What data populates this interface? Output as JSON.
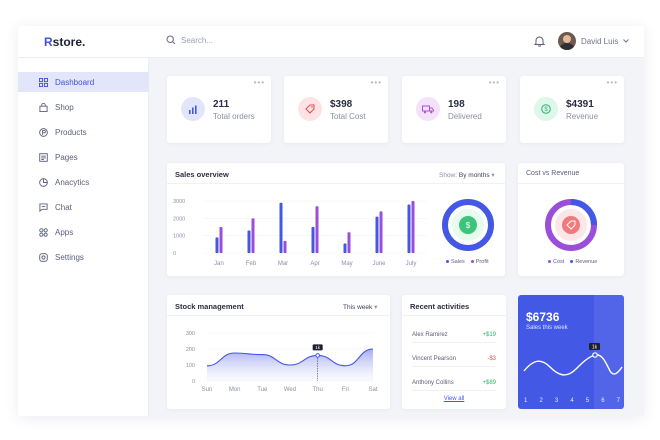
{
  "brand": {
    "first": "R",
    "rest": "store."
  },
  "search": {
    "placeholder": "Search..."
  },
  "user": {
    "name": "David Luis"
  },
  "sidebar": {
    "items": [
      {
        "label": "Dashboard",
        "icon": "dashboard-icon",
        "active": true
      },
      {
        "label": "Shop",
        "icon": "shop-icon"
      },
      {
        "label": "Products",
        "icon": "products-icon"
      },
      {
        "label": "Pages",
        "icon": "pages-icon"
      },
      {
        "label": "Anacytics",
        "icon": "analytics-icon"
      },
      {
        "label": "Chat",
        "icon": "chat-icon"
      },
      {
        "label": "Apps",
        "icon": "apps-icon"
      },
      {
        "label": "Settings",
        "icon": "settings-icon"
      }
    ]
  },
  "stats": [
    {
      "value": "211",
      "label": "Total orders",
      "icon": "bar-chart-icon",
      "color": "#4458e6",
      "bg": "#e3e6fb"
    },
    {
      "value": "$398",
      "label": "Total Cost",
      "icon": "tag-icon",
      "color": "#e0525a",
      "bg": "#fde3e4"
    },
    {
      "value": "198",
      "label": "Delivered",
      "icon": "truck-icon",
      "color": "#b04fd8",
      "bg": "#f4e2fb"
    },
    {
      "value": "$4391",
      "label": "Revenue",
      "icon": "dollar-icon",
      "color": "#2fb46a",
      "bg": "#dff6ea"
    }
  ],
  "sales_overview": {
    "title": "Sales overview",
    "show_label": "Show:",
    "show_value": "By months",
    "legend": [
      "Sales",
      "Profit"
    ]
  },
  "cost_vs_revenue": {
    "title": "Cost vs Revenue",
    "legend": [
      "Cost",
      "Revenue"
    ]
  },
  "stock": {
    "title": "Stock management",
    "period": "This week",
    "marker_label": "1k"
  },
  "activities": {
    "title": "Recent activities",
    "rows": [
      {
        "name": "Alex Ramirez",
        "amount": "+$19",
        "color": "#2fb46a"
      },
      {
        "name": "Vincent Pearson",
        "amount": "-$3",
        "color": "#e0525a"
      },
      {
        "name": "Anthony Collins",
        "amount": "+$89",
        "color": "#2fb46a"
      }
    ],
    "view_all": "View all"
  },
  "sales_week": {
    "value": "$6736",
    "label": "Sales this week",
    "marker_label": "1k",
    "days": [
      "1",
      "2",
      "3",
      "4",
      "5",
      "6",
      "7"
    ]
  },
  "colors": {
    "accent": "#4458e6",
    "profit": "#9b4fd8",
    "page_bg": "#f3f4f8"
  },
  "chart_data": [
    {
      "type": "bar",
      "title": "Sales overview",
      "categories": [
        "Jan",
        "Feb",
        "Mar",
        "Apr",
        "May",
        "June",
        "July"
      ],
      "series": [
        {
          "name": "Sales",
          "values": [
            900,
            1300,
            2900,
            1500,
            550,
            2100,
            2800
          ]
        },
        {
          "name": "Profit",
          "values": [
            1500,
            2000,
            700,
            2700,
            1200,
            2400,
            3000
          ]
        }
      ],
      "yticks": [
        "0",
        "1000",
        "2000",
        "3000"
      ],
      "ylim": [
        0,
        3000
      ]
    },
    {
      "type": "line",
      "title": "Stock management",
      "categories": [
        "Sun",
        "Mon",
        "Tue",
        "Wed",
        "Thu",
        "Fri",
        "Sat"
      ],
      "series": [
        {
          "values": [
            95,
            175,
            165,
            100,
            160,
            95,
            200
          ]
        }
      ],
      "yticks": [
        "0",
        "100",
        "200",
        "300"
      ],
      "ylim": [
        0,
        300
      ]
    }
  ]
}
